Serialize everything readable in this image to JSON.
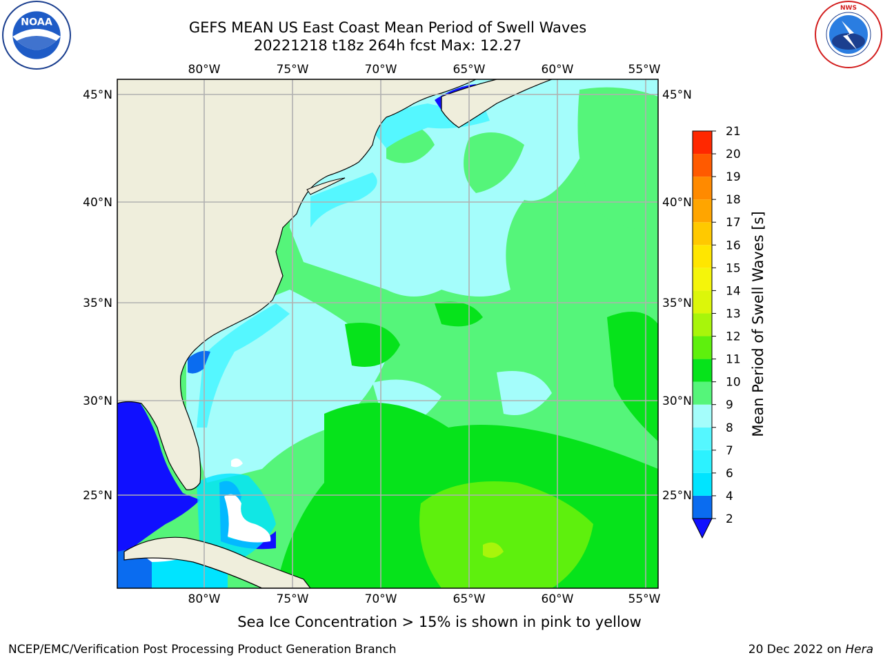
{
  "title": {
    "line1": "GEFS MEAN US East Coast Mean Period of Swell Waves",
    "line2": "20221218 t18z 264h fcst   Max: 12.27"
  },
  "logos": {
    "left": "NOAA",
    "right": "NATIONAL WEATHER SERVICE"
  },
  "map": {
    "lon_labels": [
      "80°W",
      "75°W",
      "70°W",
      "65°W",
      "60°W",
      "55°W"
    ],
    "lat_labels": [
      "45°N",
      "40°N",
      "35°N",
      "30°N",
      "25°N"
    ],
    "land_color": "#efeedc",
    "grid_color": "#b0b0b0"
  },
  "colorbar": {
    "label": "Mean Period of Swell Waves [s]",
    "ticks": [
      "2",
      "4",
      "6",
      "7",
      "8",
      "9",
      "10",
      "11",
      "12",
      "13",
      "14",
      "15",
      "16",
      "17",
      "18",
      "19",
      "20",
      "21"
    ],
    "colors": [
      "#0a6cf0",
      "#00e4ff",
      "#2cf2ff",
      "#55f7ff",
      "#a4fdfb",
      "#55f57a",
      "#06e31b",
      "#5ef00d",
      "#a8f50b",
      "#dcf60a",
      "#f5f50a",
      "#ffe600",
      "#ffc900",
      "#ffa500",
      "#ff8a00",
      "#ff5a00",
      "#ff2800",
      "#ff0000"
    ],
    "under_color": "#1010ff"
  },
  "footer": {
    "ice_note": "Sea Ice Concentration > 15% is shown in pink to yellow",
    "left": "NCEP/EMC/Verification Post Processing Product Generation Branch",
    "right_date": "20 Dec 2022 on ",
    "right_host": "Hera"
  }
}
